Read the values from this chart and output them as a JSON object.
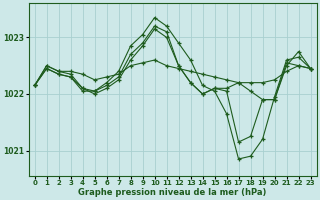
{
  "xlabel": "Graphe pression niveau de la mer (hPa)",
  "bg_color": "#cde8e8",
  "grid_color": "#a8d0d0",
  "line_color": "#1e5c1e",
  "marker": "+",
  "xlim": [
    -0.5,
    23.5
  ],
  "ylim": [
    1020.55,
    1023.6
  ],
  "yticks": [
    1021,
    1022,
    1023
  ],
  "xticks": [
    0,
    1,
    2,
    3,
    4,
    5,
    6,
    7,
    8,
    9,
    10,
    11,
    12,
    13,
    14,
    15,
    16,
    17,
    18,
    19,
    20,
    21,
    22,
    23
  ],
  "series": [
    {
      "x": [
        0,
        1,
        2,
        3,
        4,
        5,
        6,
        7,
        8,
        9,
        10,
        11,
        12,
        13,
        14,
        15,
        16,
        17,
        18,
        19,
        20,
        21,
        22,
        23
      ],
      "y": [
        1022.15,
        1022.5,
        1022.4,
        1022.4,
        1022.35,
        1022.25,
        1022.3,
        1022.35,
        1022.5,
        1022.55,
        1022.6,
        1022.5,
        1022.45,
        1022.4,
        1022.35,
        1022.3,
        1022.25,
        1022.2,
        1022.2,
        1022.2,
        1022.25,
        1022.4,
        1022.5,
        1022.45
      ]
    },
    {
      "x": [
        0,
        1,
        2,
        3,
        4,
        5,
        6,
        7,
        8,
        9,
        10,
        11,
        12,
        13,
        14,
        15,
        16,
        17,
        18,
        19,
        20,
        21,
        22,
        23
      ],
      "y": [
        1022.15,
        1022.5,
        1022.4,
        1022.35,
        1022.1,
        1022.05,
        1022.2,
        1022.4,
        1022.85,
        1023.05,
        1023.35,
        1023.2,
        1022.9,
        1022.6,
        1022.15,
        1022.05,
        1021.65,
        1020.85,
        1020.9,
        1021.2,
        1021.95,
        1022.6,
        1022.65,
        1022.45
      ]
    },
    {
      "x": [
        0,
        1,
        2,
        3,
        4,
        5,
        6,
        7,
        8,
        9,
        10,
        11,
        12,
        13,
        14,
        15,
        16,
        17,
        18,
        19,
        20,
        21,
        22,
        23
      ],
      "y": [
        1022.15,
        1022.45,
        1022.35,
        1022.3,
        1022.05,
        1022.05,
        1022.15,
        1022.3,
        1022.7,
        1022.9,
        1023.2,
        1023.1,
        1022.5,
        1022.2,
        1022.0,
        1022.1,
        1022.05,
        1021.15,
        1021.25,
        1021.9,
        1021.9,
        1022.5,
        1022.75,
        1022.45
      ]
    },
    {
      "x": [
        0,
        1,
        2,
        3,
        4,
        5,
        6,
        7,
        8,
        9,
        10,
        11,
        12,
        13,
        14,
        15,
        16,
        17,
        18,
        19,
        20,
        21,
        22,
        23
      ],
      "y": [
        1022.15,
        1022.45,
        1022.35,
        1022.3,
        1022.1,
        1022.0,
        1022.1,
        1022.25,
        1022.6,
        1022.85,
        1023.15,
        1023.0,
        1022.5,
        1022.2,
        1022.0,
        1022.1,
        1022.1,
        1022.2,
        1022.05,
        1021.9,
        1021.9,
        1022.55,
        1022.5,
        1022.45
      ]
    }
  ]
}
